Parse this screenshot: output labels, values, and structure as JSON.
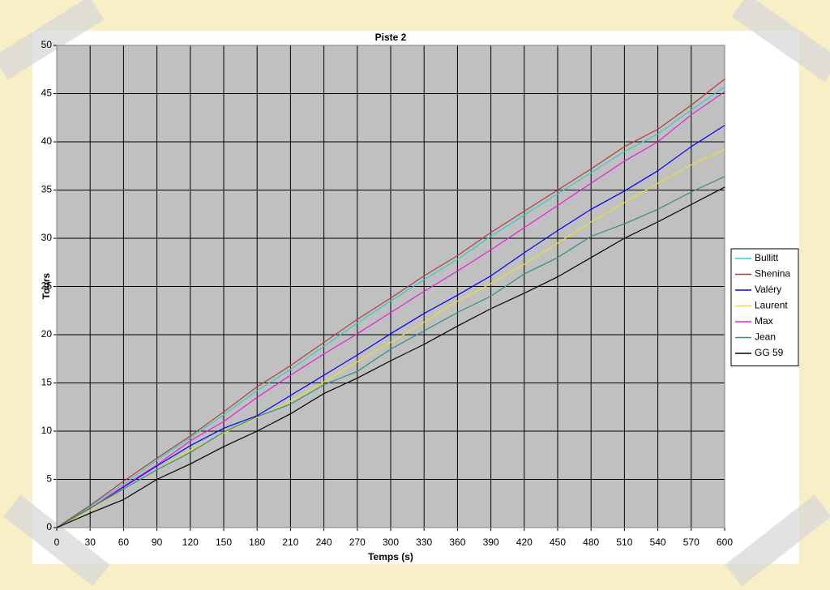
{
  "chart_data": {
    "type": "line",
    "title": "Piste 2",
    "x_label": "Temps (s)",
    "y_label": "Tours",
    "x": [
      0,
      30,
      60,
      90,
      120,
      150,
      180,
      210,
      240,
      270,
      300,
      330,
      360,
      390,
      420,
      450,
      480,
      510,
      540,
      570,
      600
    ],
    "series": [
      {
        "name": "Bullitt",
        "color": "#33cccc",
        "values": [
          0,
          2.2,
          4.5,
          7.0,
          9.3,
          11.7,
          14.2,
          16.4,
          18.8,
          21.2,
          23.5,
          25.7,
          27.8,
          30.2,
          32.4,
          34.6,
          36.8,
          39.0,
          40.8,
          43.3,
          45.7
        ]
      },
      {
        "name": "Shenina",
        "color": "#b04030",
        "values": [
          0,
          2.3,
          4.8,
          7.2,
          9.5,
          12.0,
          14.6,
          16.8,
          19.2,
          21.6,
          23.8,
          26.1,
          28.2,
          30.6,
          32.8,
          35.0,
          37.2,
          39.5,
          41.3,
          43.8,
          46.5
        ]
      },
      {
        "name": "Valéry",
        "color": "#0000ee",
        "values": [
          0,
          2.0,
          4.2,
          6.4,
          8.5,
          10.3,
          11.6,
          13.7,
          15.8,
          17.9,
          20.1,
          22.2,
          24.1,
          26.1,
          28.5,
          30.8,
          33.0,
          34.9,
          37.0,
          39.5,
          41.7
        ]
      },
      {
        "name": "Laurent",
        "color": "#e8e030",
        "values": [
          0,
          1.8,
          4.0,
          6.0,
          8.0,
          9.8,
          11.4,
          13.1,
          15.1,
          17.2,
          19.2,
          21.3,
          23.5,
          25.3,
          27.3,
          29.5,
          31.7,
          33.7,
          35.7,
          37.6,
          39.2
        ]
      },
      {
        "name": "Max",
        "color": "#e020e0",
        "values": [
          0,
          2.0,
          4.3,
          6.5,
          9.0,
          11.0,
          13.5,
          15.8,
          18.0,
          20.1,
          22.3,
          24.5,
          26.6,
          28.8,
          31.1,
          33.4,
          35.7,
          38.0,
          40.0,
          42.8,
          45.2
        ]
      },
      {
        "name": "Jean",
        "color": "#2f8f80",
        "values": [
          0,
          2.0,
          4.0,
          6.0,
          7.8,
          9.9,
          11.5,
          12.8,
          14.8,
          16.2,
          18.5,
          20.4,
          22.3,
          24.0,
          26.3,
          28.0,
          30.2,
          31.5,
          33.0,
          34.8,
          36.4
        ]
      },
      {
        "name": "GG 59",
        "color": "#000000",
        "values": [
          0,
          1.5,
          2.9,
          5.0,
          6.6,
          8.4,
          10.0,
          11.8,
          13.9,
          15.5,
          17.3,
          19.0,
          20.9,
          22.7,
          24.3,
          26.0,
          28.0,
          30.0,
          31.7,
          33.5,
          35.3
        ]
      }
    ],
    "xlim": [
      0,
      600
    ],
    "xticks": [
      0,
      30,
      60,
      90,
      120,
      150,
      180,
      210,
      240,
      270,
      300,
      330,
      360,
      390,
      420,
      450,
      480,
      510,
      540,
      570,
      600
    ],
    "ylim": [
      0,
      50
    ],
    "yticks": [
      0,
      5,
      10,
      15,
      20,
      25,
      30,
      35,
      40,
      45,
      50
    ],
    "grid": true,
    "legend": "right"
  }
}
